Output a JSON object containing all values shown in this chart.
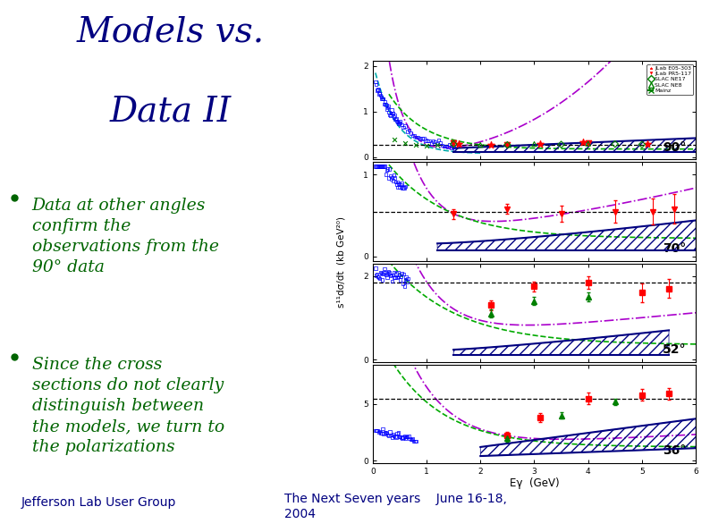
{
  "background_color": "#ffffff",
  "title_line1": "Models vs.",
  "title_line2": "Data II",
  "title_color": "#000080",
  "title_fontsize": 28,
  "bullet_color": "#006400",
  "bullet_fontsize": 13.5,
  "bullets": [
    "Data at other angles\nconfirm the\nobservations from the\n90° data",
    "Since the cross\nsections do not clearly\ndistinguish between\nthe models, we turn to\nthe polarizations"
  ],
  "footer_left": "Jefferson Lab User Group",
  "footer_right": "The Next Seven years    June 16-18,\n2004",
  "footer_color": "#000080",
  "footer_fontsize": 10,
  "ylabel_text": "s¹¹dσ/dt  (kb GeV²⁰)",
  "xlabel_text": "Eγ  (GeV)",
  "panel_labels": [
    "90°",
    "70°",
    "52°",
    "36°"
  ]
}
